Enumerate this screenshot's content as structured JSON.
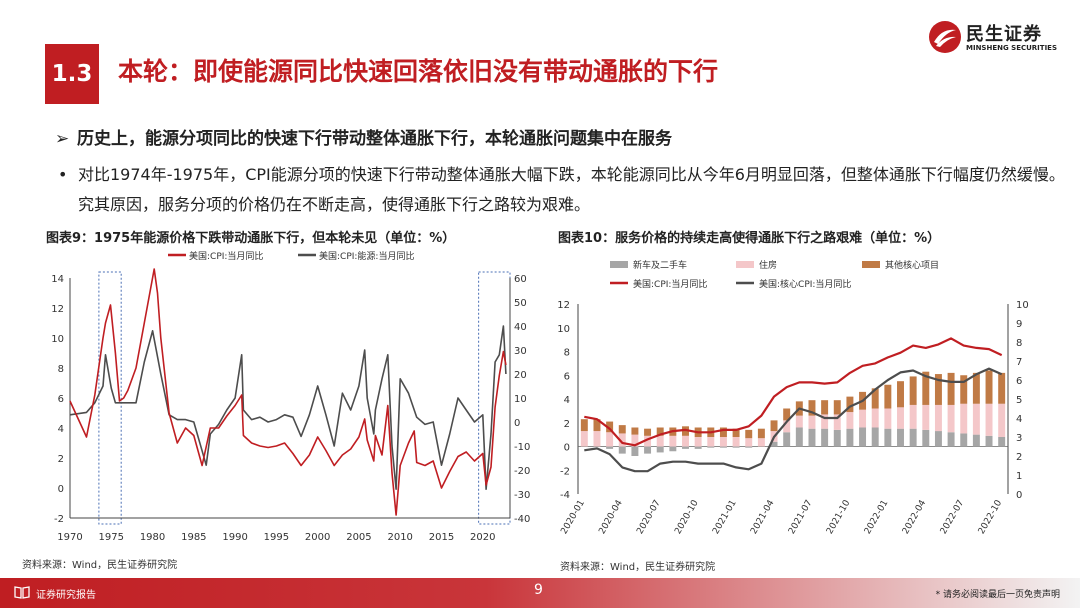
{
  "logo": {
    "cn": "民生证券",
    "en": "MINSHENG SECURITIES",
    "color": "#c01e22"
  },
  "section": {
    "number": "1.3",
    "title": "本轮：即使能源同比快速回落依旧没有带动通胀的下行"
  },
  "bullet1": {
    "marker": "➢",
    "text": "历史上，能源分项同比的快速下行带动整体通胀下行，本轮通胀问题集中在服务"
  },
  "bullet2": {
    "marker": "•",
    "text": "对比1974年-1975年，CPI能源分项的快速下行带动整体通胀大幅下跌，本轮能源同比从今年6月明显回落，但整体通胀下行幅度仍然缓慢。究其原因，服务分项的价格仍在不断走高，使得通胀下行之路较为艰难。"
  },
  "chart1": {
    "title": "图表9：1975年能源价格下跌带动通胀下行，但本轮未见（单位：%）",
    "source": "资料来源：Wind，民生证券研究院"
  },
  "chart2": {
    "title": "图表10：服务价格的持续走高使得通胀下行之路艰难（单位：%）",
    "source": "资料来源：Wind，民生证券研究院"
  },
  "footer": {
    "label": "证券研究报告",
    "page": "9",
    "disclaimer": "* 请务必阅读最后一页免责声明"
  },
  "colors": {
    "red": "#c01e22",
    "dark": "#4d4d4d",
    "newcar": "#a6a6a6",
    "housing": "#f4c7c9",
    "othercore": "#c07a45"
  },
  "chart_data": [
    {
      "type": "line",
      "series": [
        {
          "name": "美国:CPI:当月同比",
          "axis": "left",
          "color": "#c01e22",
          "x": [
            1970,
            1972,
            1973,
            1974,
            1974.3,
            1974.9,
            1975.5,
            1976,
            1976.5,
            1977,
            1978,
            1979,
            1980.2,
            1980.6,
            1981,
            1982,
            1983,
            1984,
            1985,
            1986,
            1987,
            1988,
            1989,
            1990,
            1990.8,
            1991,
            1992,
            1993,
            1994,
            1995,
            1996,
            1997,
            1998,
            1999,
            2000,
            2001,
            2002,
            2003,
            2004,
            2005,
            2005.7,
            2006,
            2006.8,
            2007,
            2007.8,
            2008.5,
            2009,
            2009.5,
            2010,
            2011,
            2011.7,
            2012,
            2013,
            2014,
            2015,
            2016,
            2017,
            2018,
            2019,
            2020,
            2020.4,
            2021,
            2021.5,
            2022,
            2022.5,
            2022.8
          ],
          "y": [
            5.8,
            3.4,
            6.2,
            10,
            11,
            12.2,
            9,
            5.8,
            6,
            6.5,
            8,
            11,
            14.6,
            13,
            10,
            5,
            3,
            4,
            3.5,
            1.5,
            4,
            4,
            4.8,
            5.5,
            6.2,
            3.5,
            3,
            2.8,
            2.7,
            2.8,
            3,
            2.3,
            1.5,
            2.2,
            3.4,
            2.5,
            1.5,
            2.2,
            2.6,
            3.4,
            4.6,
            3.2,
            1.8,
            3.5,
            2.2,
            5.5,
            1,
            -1.8,
            1.5,
            3,
            3.8,
            1.7,
            1.5,
            1.8,
            0,
            1.1,
            2.1,
            2.4,
            1.8,
            2.3,
            0.2,
            1.4,
            5.4,
            7.5,
            9.1,
            8.2
          ]
        },
        {
          "name": "美国:CPI:能源:当月同比",
          "axis": "right",
          "color": "#4d4d4d",
          "x": [
            1970,
            1972,
            1973,
            1974,
            1974.3,
            1975,
            1975.5,
            1976,
            1977,
            1978,
            1979,
            1980,
            1981,
            1982,
            1983,
            1984,
            1985,
            1986,
            1986.5,
            1987,
            1988,
            1989,
            1990,
            1990.8,
            1991,
            1992,
            1993,
            1994,
            1995,
            1996,
            1997,
            1998,
            1999,
            2000,
            2001,
            2002,
            2003,
            2004,
            2005,
            2005.7,
            2006,
            2006.8,
            2007,
            2007.8,
            2008.5,
            2009,
            2009.5,
            2010,
            2011,
            2012,
            2013,
            2014,
            2015,
            2016,
            2017,
            2018,
            2019,
            2020,
            2020.4,
            2021,
            2021.5,
            2022,
            2022.5,
            2022.8
          ],
          "y": [
            3,
            4,
            8,
            15,
            28,
            14,
            8,
            8,
            8,
            8,
            25,
            38,
            20,
            3,
            1,
            1,
            0,
            -12,
            -18,
            -5,
            -1,
            5,
            10,
            28,
            5,
            1,
            2,
            0,
            1,
            3,
            2,
            -6,
            3,
            15,
            3,
            -10,
            12,
            5,
            15,
            30,
            10,
            -5,
            5,
            18,
            28,
            -10,
            -28,
            18,
            12,
            2,
            -1,
            0,
            -18,
            -5,
            10,
            5,
            0,
            3,
            -28,
            -5,
            25,
            28,
            40,
            20
          ]
        }
      ],
      "xticks": [
        1970,
        1975,
        1980,
        1985,
        1990,
        1995,
        2000,
        2005,
        2010,
        2015,
        2020
      ],
      "ylim_left": [
        -2,
        14
      ],
      "yticks_left": [
        -2,
        0,
        2,
        4,
        6,
        8,
        10,
        12,
        14
      ],
      "ylim_right": [
        -40,
        60
      ],
      "yticks_right": [
        -40,
        -30,
        -20,
        -10,
        0,
        10,
        20,
        30,
        40,
        50,
        60
      ],
      "highlight_x_ranges": [
        [
          1973.5,
          1976.2
        ],
        [
          2019.5,
          2023.3
        ]
      ],
      "legend": "top",
      "grid": false
    },
    {
      "type": "bar",
      "categories": [
        "2020-01",
        "2020-02",
        "2020-03",
        "2020-04",
        "2020-05",
        "2020-06",
        "2020-07",
        "2020-08",
        "2020-09",
        "2020-10",
        "2020-11",
        "2020-12",
        "2021-01",
        "2021-02",
        "2021-03",
        "2021-04",
        "2021-05",
        "2021-06",
        "2021-07",
        "2021-08",
        "2021-09",
        "2021-10",
        "2021-11",
        "2021-12",
        "2022-01",
        "2022-02",
        "2022-03",
        "2022-04",
        "2022-05",
        "2022-06",
        "2022-07",
        "2022-08",
        "2022-09",
        "2022-10"
      ],
      "xtick_labels": [
        "2020-01",
        "2020-04",
        "2020-07",
        "2020-10",
        "2021-01",
        "2021-04",
        "2021-07",
        "2021-10",
        "2022-01",
        "2022-04",
        "2022-07",
        "2022-10"
      ],
      "series": [
        {
          "name": "新车及二手车",
          "kind": "bar",
          "axis": "left",
          "color": "#a6a6a6",
          "values": [
            0,
            0,
            -0.2,
            -0.6,
            -0.8,
            -0.6,
            -0.5,
            -0.4,
            -0.2,
            -0.2,
            -0.1,
            -0.1,
            -0.1,
            -0.1,
            0,
            0.4,
            1.2,
            1.6,
            1.5,
            1.5,
            1.4,
            1.5,
            1.6,
            1.6,
            1.5,
            1.5,
            1.5,
            1.4,
            1.3,
            1.2,
            1.1,
            1.0,
            0.9,
            0.8
          ]
        },
        {
          "name": "住房",
          "kind": "bar",
          "axis": "left",
          "color": "#f4c7c9",
          "values": [
            1.3,
            1.3,
            1.2,
            1.1,
            1.0,
            0.9,
            0.9,
            0.9,
            0.9,
            0.8,
            0.8,
            0.8,
            0.8,
            0.7,
            0.7,
            0.9,
            1.0,
            1.0,
            1.1,
            1.2,
            1.3,
            1.4,
            1.5,
            1.6,
            1.7,
            1.8,
            2.0,
            2.1,
            2.2,
            2.3,
            2.5,
            2.6,
            2.7,
            2.8
          ]
        },
        {
          "name": "其他核心项目",
          "kind": "bar",
          "axis": "left",
          "color": "#c07a45",
          "values": [
            1.0,
            1.0,
            0.9,
            0.7,
            0.6,
            0.6,
            0.7,
            0.7,
            0.8,
            0.8,
            0.8,
            0.8,
            0.7,
            0.7,
            0.8,
            0.9,
            1.0,
            1.2,
            1.3,
            1.2,
            1.2,
            1.3,
            1.5,
            1.7,
            2.0,
            2.2,
            2.4,
            2.8,
            2.6,
            2.7,
            2.4,
            2.6,
            2.8,
            2.6
          ]
        },
        {
          "name": "美国:CPI:当月同比",
          "kind": "line",
          "axis": "left",
          "color": "#c01e22",
          "values": [
            2.5,
            2.3,
            1.5,
            0.3,
            0.1,
            0.6,
            1.0,
            1.3,
            1.4,
            1.2,
            1.2,
            1.4,
            1.4,
            1.7,
            2.6,
            4.2,
            5.0,
            5.4,
            5.4,
            5.3,
            5.4,
            6.2,
            6.8,
            7.0,
            7.5,
            7.9,
            8.5,
            8.3,
            8.6,
            9.1,
            8.5,
            8.3,
            8.2,
            7.7
          ]
        },
        {
          "name": "美国:核心CPI:当月同比",
          "kind": "line",
          "axis": "right",
          "color": "#4d4d4d",
          "values": [
            2.3,
            2.4,
            2.1,
            1.4,
            1.2,
            1.2,
            1.6,
            1.7,
            1.7,
            1.6,
            1.6,
            1.6,
            1.4,
            1.3,
            1.6,
            3.0,
            3.8,
            4.5,
            4.3,
            4.0,
            4.0,
            4.6,
            4.9,
            5.5,
            6.0,
            6.4,
            6.5,
            6.2,
            6.0,
            5.9,
            5.9,
            6.3,
            6.6,
            6.3
          ]
        }
      ],
      "ylim_left": [
        -4,
        12
      ],
      "yticks_left": [
        -4,
        -2,
        0,
        2,
        4,
        6,
        8,
        10,
        12
      ],
      "ylim_right": [
        0,
        10
      ],
      "yticks_right": [
        0,
        1,
        2,
        3,
        4,
        5,
        6,
        7,
        8,
        9,
        10
      ],
      "legend": "top",
      "grid": false
    }
  ]
}
